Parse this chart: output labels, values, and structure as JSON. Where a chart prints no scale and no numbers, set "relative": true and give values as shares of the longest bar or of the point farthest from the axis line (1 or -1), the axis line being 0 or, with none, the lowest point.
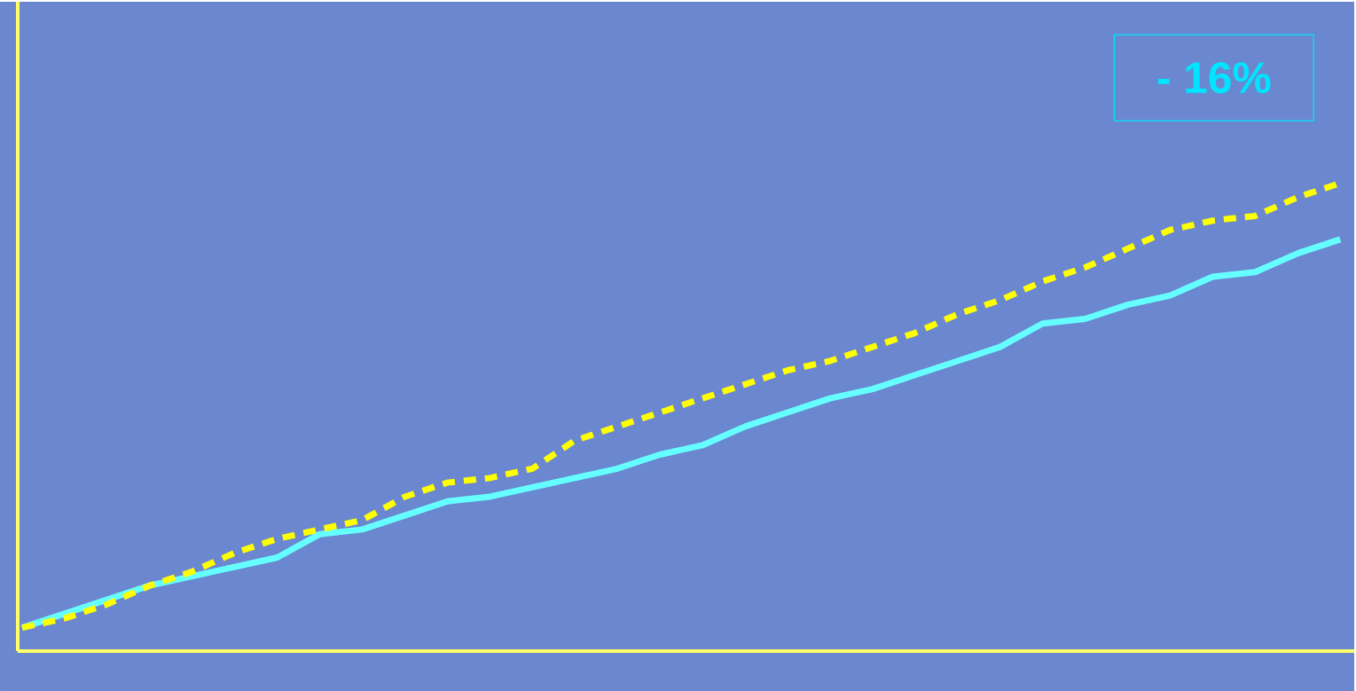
{
  "chart_data": {
    "type": "line",
    "relative": true,
    "categories": [
      null,
      null,
      null,
      null,
      null,
      null,
      null,
      null,
      null,
      null,
      null,
      null,
      null,
      null,
      null,
      null,
      null,
      null,
      null,
      null,
      null,
      null,
      null,
      null,
      null,
      null,
      null,
      null,
      null,
      null,
      null,
      null
    ],
    "series": [
      {
        "color": "#ffff00",
        "line_style": "dashed",
        "values": [
          0.05,
          0.07,
          0.1,
          0.14,
          0.17,
          0.21,
          0.24,
          0.26,
          0.28,
          0.33,
          0.36,
          0.37,
          0.39,
          0.45,
          0.48,
          0.51,
          0.54,
          0.57,
          0.6,
          0.62,
          0.65,
          0.68,
          0.72,
          0.75,
          0.79,
          0.82,
          0.86,
          0.9,
          0.92,
          0.93,
          0.97,
          1
        ]
      },
      {
        "color": "#66ffff",
        "line_style": "solid",
        "values": [
          0.05,
          0.08,
          0.11,
          0.14,
          0.16,
          0.18,
          0.2,
          0.25,
          0.26,
          0.29,
          0.32,
          0.33,
          0.35,
          0.37,
          0.39,
          0.42,
          0.44,
          0.48,
          0.51,
          0.54,
          0.56,
          0.59,
          0.62,
          0.65,
          0.7,
          0.71,
          0.74,
          0.76,
          0.8,
          0.81,
          0.85,
          0.88
        ]
      }
    ],
    "annotations": [
      "- 16%"
    ],
    "marker": "none"
  }
}
